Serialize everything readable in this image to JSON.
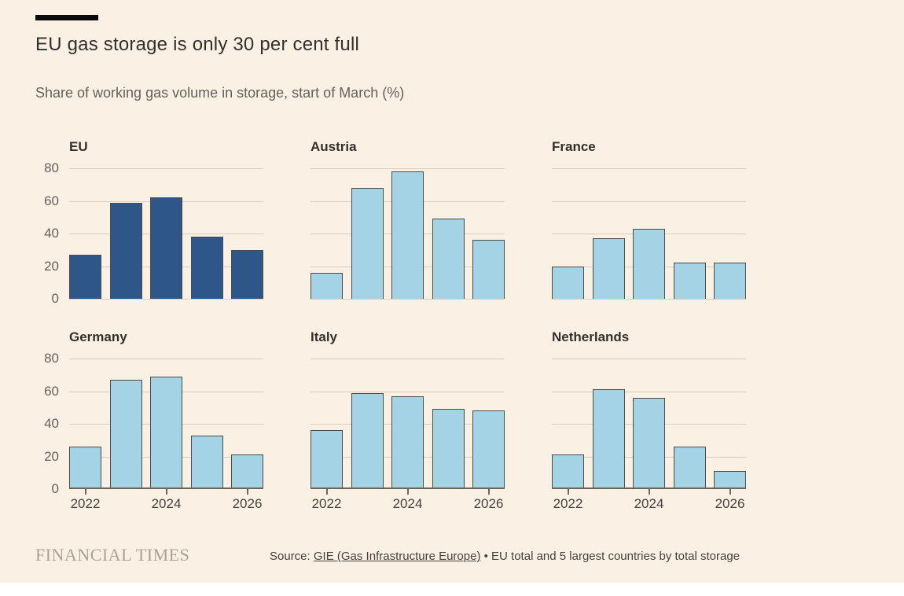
{
  "page": {
    "title": "EU gas storage is only 30 per cent full",
    "subtitle": "Share of working gas volume in storage, start of March (%)"
  },
  "footer": {
    "brand": "FINANCIAL TIMES",
    "source_prefix": "Source: ",
    "source_link": "GIE (Gas Infrastructure Europe)",
    "source_suffix": " • EU total and 5 largest countries by total storage"
  },
  "chart_data": {
    "type": "bar",
    "layout": "small-multiples, 2 rows x 3 columns",
    "x": [
      2022,
      2023,
      2024,
      2025,
      2026
    ],
    "x_tick_labels": [
      "2022",
      "2024",
      "2026"
    ],
    "x_tick_bar_indices": [
      0,
      2,
      4
    ],
    "ylim": [
      0,
      80
    ],
    "yticks": [
      80,
      60,
      40,
      20,
      0
    ],
    "grid": "horizontal light gridlines at 0/20/40/60/80",
    "colors": {
      "eu": "#2F5689",
      "country": "#A3D3E5",
      "bar_border": "#4D4B45",
      "background": "#FBF0E4",
      "gridline": "#D8CDC2",
      "axis": "#6B655E"
    },
    "panels": [
      {
        "name": "EU",
        "color_key": "eu",
        "values": [
          27,
          59,
          62,
          38,
          30
        ]
      },
      {
        "name": "Austria",
        "color_key": "country",
        "values": [
          16,
          68,
          78,
          49,
          36
        ]
      },
      {
        "name": "France",
        "color_key": "country",
        "values": [
          20,
          37,
          43,
          22,
          22
        ]
      },
      {
        "name": "Germany",
        "color_key": "country",
        "values": [
          26,
          67,
          69,
          33,
          21
        ]
      },
      {
        "name": "Italy",
        "color_key": "country",
        "values": [
          36,
          59,
          57,
          49,
          48
        ]
      },
      {
        "name": "Netherlands",
        "color_key": "country",
        "values": [
          21,
          61,
          56,
          26,
          11
        ]
      }
    ]
  }
}
